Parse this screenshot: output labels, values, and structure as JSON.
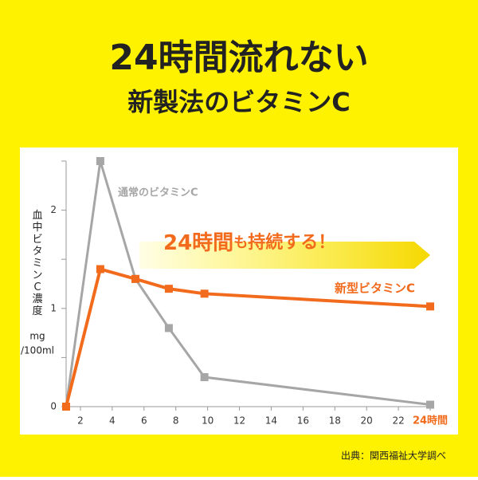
{
  "chart_data": {
    "type": "line",
    "title": "24時間流れない",
    "subtitle": "新製法のビタミンC",
    "y_label": "血中ビタミンC濃度",
    "y_unit": [
      "mg",
      "/100ml"
    ],
    "x": [
      1.1,
      3.25,
      5.46,
      7.56,
      9.8,
      24
    ],
    "series": [
      {
        "name": "通常のビタミンC",
        "color": "#a6a6a6",
        "values": [
          0,
          2.5,
          1.3,
          0.8,
          0.3,
          0.02
        ]
      },
      {
        "name": "新型ビタミンC",
        "color": "#f26b1d",
        "values": [
          0,
          1.4,
          1.3,
          1.2,
          1.15,
          1.02
        ]
      }
    ],
    "xlim": [
      1.1,
      24.2
    ],
    "ylim": [
      0,
      2.5
    ],
    "xticks": [
      2,
      4,
      6,
      8,
      10,
      12,
      14,
      16,
      18,
      20,
      22,
      {
        "value": 24,
        "label": "24時間"
      }
    ],
    "yticks": [
      0,
      1,
      2
    ],
    "yminor": [
      0.5,
      1.5,
      2.5
    ],
    "callout": [
      "24時間",
      "も",
      "持続する！"
    ],
    "source": "出典：関西福祉大学調べ"
  }
}
